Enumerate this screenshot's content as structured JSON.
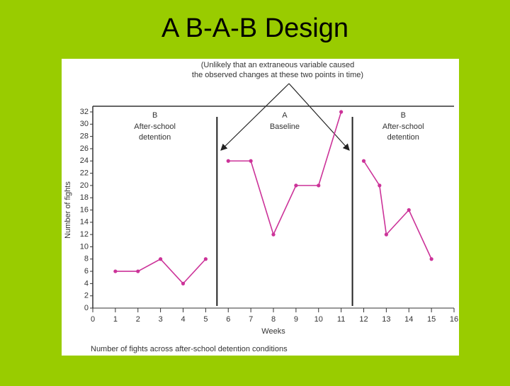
{
  "title": "A B-A-B Design",
  "chart_data": {
    "type": "line",
    "annotation": [
      "(Unlikely that an extraneous variable caused",
      "the observed changes at these two points in time)"
    ],
    "phases": [
      {
        "label": "B",
        "description": [
          "After-school",
          "detention"
        ]
      },
      {
        "label": "A",
        "description": [
          "Baseline"
        ]
      },
      {
        "label": "B",
        "description": [
          "After-school",
          "detention"
        ]
      }
    ],
    "phase_lines": [
      5.5,
      11.5
    ],
    "xlabel": "Weeks",
    "ylabel": "Number of fights",
    "caption": "Number of fights across after-school detention conditions",
    "xlim": [
      0,
      16
    ],
    "xticks": [
      0,
      1,
      2,
      3,
      4,
      5,
      6,
      7,
      8,
      9,
      10,
      11,
      12,
      13,
      14,
      15,
      16
    ],
    "ylim": [
      0,
      32
    ],
    "yticks": [
      0,
      2,
      4,
      6,
      8,
      10,
      12,
      14,
      16,
      18,
      20,
      22,
      24,
      26,
      28,
      30,
      32
    ],
    "series": [
      {
        "color": "#cc3399",
        "x": [
          1,
          2,
          3,
          4,
          5
        ],
        "values": [
          6,
          6,
          8,
          4,
          8
        ]
      },
      {
        "color": "#cc3399",
        "x": [
          6,
          7,
          8,
          9,
          10,
          11
        ],
        "values": [
          24,
          24,
          12,
          20,
          20,
          32
        ]
      },
      {
        "color": "#cc3399",
        "x": [
          12,
          12.7,
          13,
          14,
          15
        ],
        "values": [
          24,
          20,
          12,
          16,
          8
        ]
      }
    ]
  }
}
